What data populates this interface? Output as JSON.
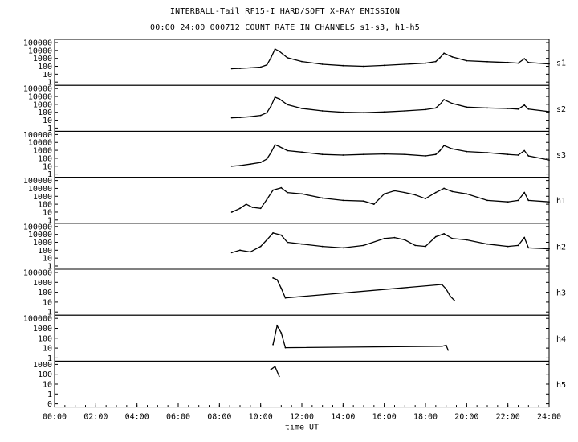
{
  "title": "INTERBALL-Tail RF15-I HARD/SOFT X-RAY EMISSION",
  "subtitle": "00:00 24:00 000712  COUNT RATE IN CHANNELS s1-s3, h1-h5",
  "chart_data": {
    "type": "line",
    "xlabel": "time UT",
    "x_unit": "hours UT",
    "xlim": [
      0,
      24
    ],
    "x_ticks": [
      "00:00",
      "02:00",
      "04:00",
      "06:00",
      "08:00",
      "10:00",
      "12:00",
      "14:00",
      "16:00",
      "18:00",
      "20:00",
      "22:00",
      "24:00"
    ],
    "y_scale": "log",
    "panels": [
      {
        "name": "s1",
        "y_ticks": [
          "100000",
          "10000",
          "1000",
          "100",
          "10",
          "1"
        ],
        "ylim": [
          1,
          100000
        ],
        "points": [
          [
            8.6,
            50
          ],
          [
            9.0,
            55
          ],
          [
            9.5,
            65
          ],
          [
            10.0,
            80
          ],
          [
            10.3,
            150
          ],
          [
            10.5,
            1200
          ],
          [
            10.7,
            15000
          ],
          [
            10.9,
            8000
          ],
          [
            11.3,
            1200
          ],
          [
            12,
            400
          ],
          [
            13,
            180
          ],
          [
            14,
            120
          ],
          [
            15,
            100
          ],
          [
            16,
            130
          ],
          [
            17,
            180
          ],
          [
            18,
            250
          ],
          [
            18.5,
            400
          ],
          [
            18.7,
            1200
          ],
          [
            18.9,
            4500
          ],
          [
            19.3,
            1500
          ],
          [
            20,
            500
          ],
          [
            21,
            380
          ],
          [
            22,
            300
          ],
          [
            22.5,
            250
          ],
          [
            22.8,
            900
          ],
          [
            23,
            300
          ],
          [
            24,
            200
          ]
        ]
      },
      {
        "name": "s2",
        "y_ticks": [
          "100000",
          "10000",
          "1000",
          "100",
          "10",
          "1"
        ],
        "ylim": [
          1,
          100000
        ],
        "points": [
          [
            8.6,
            20
          ],
          [
            9.0,
            22
          ],
          [
            9.5,
            28
          ],
          [
            10.0,
            40
          ],
          [
            10.3,
            90
          ],
          [
            10.5,
            600
          ],
          [
            10.7,
            8000
          ],
          [
            10.9,
            5000
          ],
          [
            11.3,
            900
          ],
          [
            12,
            300
          ],
          [
            13,
            150
          ],
          [
            14,
            100
          ],
          [
            15,
            90
          ],
          [
            16,
            110
          ],
          [
            17,
            150
          ],
          [
            18,
            220
          ],
          [
            18.5,
            350
          ],
          [
            18.7,
            1000
          ],
          [
            18.9,
            4000
          ],
          [
            19.3,
            1300
          ],
          [
            20,
            450
          ],
          [
            21,
            350
          ],
          [
            22,
            300
          ],
          [
            22.5,
            250
          ],
          [
            22.8,
            800
          ],
          [
            23,
            250
          ],
          [
            24,
            120
          ]
        ]
      },
      {
        "name": "s3",
        "y_ticks": [
          "100000",
          "10000",
          "1000",
          "100",
          "10",
          "1"
        ],
        "ylim": [
          1,
          100000
        ],
        "points": [
          [
            8.6,
            10
          ],
          [
            9.0,
            12
          ],
          [
            9.5,
            18
          ],
          [
            10.0,
            30
          ],
          [
            10.3,
            80
          ],
          [
            10.5,
            500
          ],
          [
            10.7,
            5000
          ],
          [
            10.9,
            3000
          ],
          [
            11.3,
            900
          ],
          [
            12,
            600
          ],
          [
            13,
            300
          ],
          [
            14,
            250
          ],
          [
            15,
            300
          ],
          [
            16,
            350
          ],
          [
            17,
            300
          ],
          [
            18,
            200
          ],
          [
            18.5,
            300
          ],
          [
            18.7,
            900
          ],
          [
            18.9,
            4000
          ],
          [
            19.3,
            1500
          ],
          [
            20,
            700
          ],
          [
            21,
            500
          ],
          [
            22,
            300
          ],
          [
            22.5,
            250
          ],
          [
            22.8,
            900
          ],
          [
            23,
            200
          ],
          [
            24,
            60
          ]
        ]
      },
      {
        "name": "h1",
        "y_ticks": [
          "100000",
          "10000",
          "1000",
          "100",
          "10",
          "1"
        ],
        "ylim": [
          1,
          100000
        ],
        "points": [
          [
            8.6,
            10
          ],
          [
            9.0,
            30
          ],
          [
            9.3,
            100
          ],
          [
            9.6,
            40
          ],
          [
            10.0,
            30
          ],
          [
            10.3,
            400
          ],
          [
            10.6,
            6000
          ],
          [
            11.0,
            12000
          ],
          [
            11.3,
            3000
          ],
          [
            12,
            2000
          ],
          [
            13,
            600
          ],
          [
            14,
            300
          ],
          [
            15,
            250
          ],
          [
            15.5,
            100
          ],
          [
            16,
            2000
          ],
          [
            16.5,
            5000
          ],
          [
            17,
            3000
          ],
          [
            17.5,
            1500
          ],
          [
            18,
            500
          ],
          [
            18.5,
            3000
          ],
          [
            18.9,
            10000
          ],
          [
            19.3,
            4000
          ],
          [
            20,
            2000
          ],
          [
            21,
            300
          ],
          [
            22,
            200
          ],
          [
            22.5,
            300
          ],
          [
            22.8,
            3000
          ],
          [
            23,
            300
          ],
          [
            24,
            200
          ]
        ]
      },
      {
        "name": "h2",
        "y_ticks": [
          "100000",
          "10000",
          "1000",
          "100",
          "10",
          "1"
        ],
        "ylim": [
          1,
          100000
        ],
        "points": [
          [
            8.6,
            50
          ],
          [
            9.0,
            100
          ],
          [
            9.5,
            60
          ],
          [
            10.0,
            300
          ],
          [
            10.3,
            2000
          ],
          [
            10.6,
            15000
          ],
          [
            11.0,
            8000
          ],
          [
            11.3,
            1000
          ],
          [
            12,
            600
          ],
          [
            13,
            300
          ],
          [
            14,
            200
          ],
          [
            15,
            400
          ],
          [
            16,
            3000
          ],
          [
            16.5,
            4000
          ],
          [
            17,
            2000
          ],
          [
            17.5,
            400
          ],
          [
            18,
            300
          ],
          [
            18.5,
            5000
          ],
          [
            18.9,
            12000
          ],
          [
            19.3,
            3000
          ],
          [
            20,
            2000
          ],
          [
            21,
            600
          ],
          [
            22,
            300
          ],
          [
            22.5,
            400
          ],
          [
            22.8,
            4000
          ],
          [
            23,
            200
          ],
          [
            24,
            150
          ]
        ]
      },
      {
        "name": "h3",
        "y_ticks": [
          "100000",
          "1000",
          "100",
          "10",
          "1"
        ],
        "ylim": [
          1,
          100000
        ],
        "points": [
          [
            10.6,
            20000
          ],
          [
            10.8,
            12000
          ],
          [
            11.0,
            1000
          ],
          [
            11.2,
            60
          ],
          [
            18.8,
            3000
          ],
          [
            19.0,
            800
          ],
          [
            19.2,
            100
          ],
          [
            19.4,
            30
          ]
        ]
      },
      {
        "name": "h4",
        "y_ticks": [
          "100000",
          "1000",
          "100",
          "10",
          "1"
        ],
        "ylim": [
          1,
          100000
        ],
        "points": [
          [
            10.6,
            50
          ],
          [
            10.8,
            12000
          ],
          [
            11.0,
            1500
          ],
          [
            11.2,
            20
          ],
          [
            18.8,
            30
          ],
          [
            19.0,
            40
          ],
          [
            19.1,
            10
          ]
        ]
      },
      {
        "name": "h5",
        "y_ticks": [
          "1000",
          "100",
          "10",
          "1",
          "0"
        ],
        "ylim": [
          0.1,
          1000
        ],
        "points": [
          [
            10.5,
            300
          ],
          [
            10.7,
            600
          ],
          [
            10.9,
            60
          ]
        ]
      }
    ]
  }
}
